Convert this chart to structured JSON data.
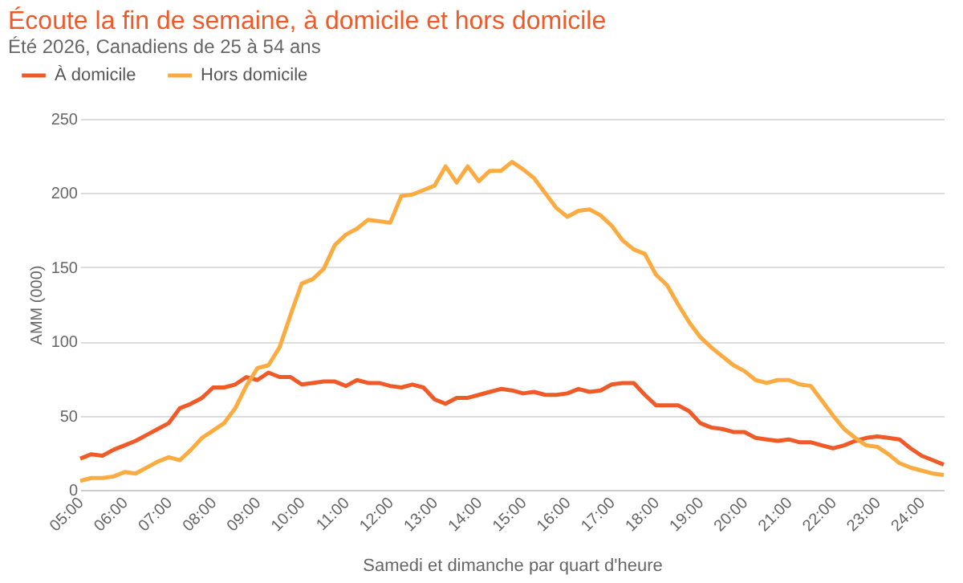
{
  "chart_data": {
    "type": "line",
    "title": "Écoute la fin de semaine, à domicile et hors domicile",
    "subtitle": "Été 2026, Canadiens de 25 à 54 ans",
    "xlabel": "Samedi et dimanche par quart d'heure",
    "ylabel": "AMM (000)",
    "x": [
      5,
      5.25,
      5.5,
      5.75,
      6,
      6.25,
      6.5,
      6.75,
      7,
      7.25,
      7.5,
      7.75,
      8,
      8.25,
      8.5,
      8.75,
      9,
      9.25,
      9.5,
      9.75,
      10,
      10.25,
      10.5,
      10.75,
      11,
      11.25,
      11.5,
      11.75,
      12,
      12.25,
      12.5,
      12.75,
      13,
      13.25,
      13.5,
      13.75,
      14,
      14.25,
      14.5,
      14.75,
      15,
      15.25,
      15.5,
      15.75,
      16,
      16.25,
      16.5,
      16.75,
      17,
      17.25,
      17.5,
      17.75,
      18,
      18.25,
      18.5,
      18.75,
      19,
      19.25,
      19.5,
      19.75,
      20,
      20.25,
      20.5,
      20.75,
      21,
      21.25,
      21.5,
      21.75,
      22,
      22.25,
      22.5,
      22.75,
      23,
      23.25,
      23.5,
      23.75,
      24,
      24.25,
      24.5
    ],
    "series": [
      {
        "name": "À domicile",
        "color": "#ef5a28",
        "values": [
          21,
          24,
          23,
          27,
          30,
          33,
          37,
          41,
          45,
          55,
          58,
          62,
          69,
          69,
          71,
          76,
          74,
          79,
          76,
          76,
          71,
          72,
          73,
          73,
          70,
          74,
          72,
          72,
          70,
          69,
          71,
          69,
          61,
          58,
          62,
          62,
          64,
          66,
          68,
          67,
          65,
          66,
          64,
          64,
          65,
          68,
          66,
          67,
          71,
          72,
          72,
          64,
          57,
          57,
          57,
          53,
          45,
          42,
          41,
          39,
          39,
          35,
          34,
          33,
          34,
          32,
          32,
          30,
          28,
          30,
          33,
          35,
          36,
          35,
          34,
          28,
          23,
          20,
          17
        ]
      },
      {
        "name": "Hors domicile",
        "color": "#fbab40",
        "values": [
          6,
          8,
          8,
          9,
          12,
          11,
          15,
          19,
          22,
          20,
          27,
          35,
          40,
          45,
          55,
          70,
          82,
          84,
          96,
          118,
          139,
          142,
          149,
          165,
          172,
          176,
          182,
          181,
          180,
          198,
          199,
          202,
          205,
          218,
          207,
          218,
          208,
          215,
          215,
          221,
          216,
          210,
          200,
          190,
          184,
          188,
          189,
          185,
          178,
          168,
          162,
          159,
          145,
          138,
          125,
          113,
          103,
          96,
          90,
          84,
          80,
          74,
          72,
          74,
          74,
          71,
          70,
          60,
          50,
          41,
          35,
          30,
          29,
          24,
          18,
          15,
          13,
          11,
          10
        ]
      }
    ],
    "xlim": [
      5,
      24.5
    ],
    "xticks": [
      {
        "value": 5,
        "label": "05:00"
      },
      {
        "value": 6,
        "label": "06:00"
      },
      {
        "value": 7,
        "label": "07:00"
      },
      {
        "value": 8,
        "label": "08:00"
      },
      {
        "value": 9,
        "label": "09:00"
      },
      {
        "value": 10,
        "label": "10:00"
      },
      {
        "value": 11,
        "label": "11:00"
      },
      {
        "value": 12,
        "label": "12:00"
      },
      {
        "value": 13,
        "label": "13:00"
      },
      {
        "value": 14,
        "label": "14:00"
      },
      {
        "value": 15,
        "label": "15:00"
      },
      {
        "value": 16,
        "label": "16:00"
      },
      {
        "value": 17,
        "label": "17:00"
      },
      {
        "value": 18,
        "label": "18:00"
      },
      {
        "value": 19,
        "label": "19:00"
      },
      {
        "value": 20,
        "label": "20:00"
      },
      {
        "value": 21,
        "label": "21:00"
      },
      {
        "value": 22,
        "label": "22:00"
      },
      {
        "value": 23,
        "label": "23:00"
      },
      {
        "value": 24,
        "label": "24:00"
      }
    ],
    "ylim": [
      0,
      250
    ],
    "yticks": [
      0,
      50,
      100,
      150,
      200,
      250
    ],
    "grid": "y",
    "legend": "top left",
    "marker": "none",
    "line_style": "solid"
  }
}
